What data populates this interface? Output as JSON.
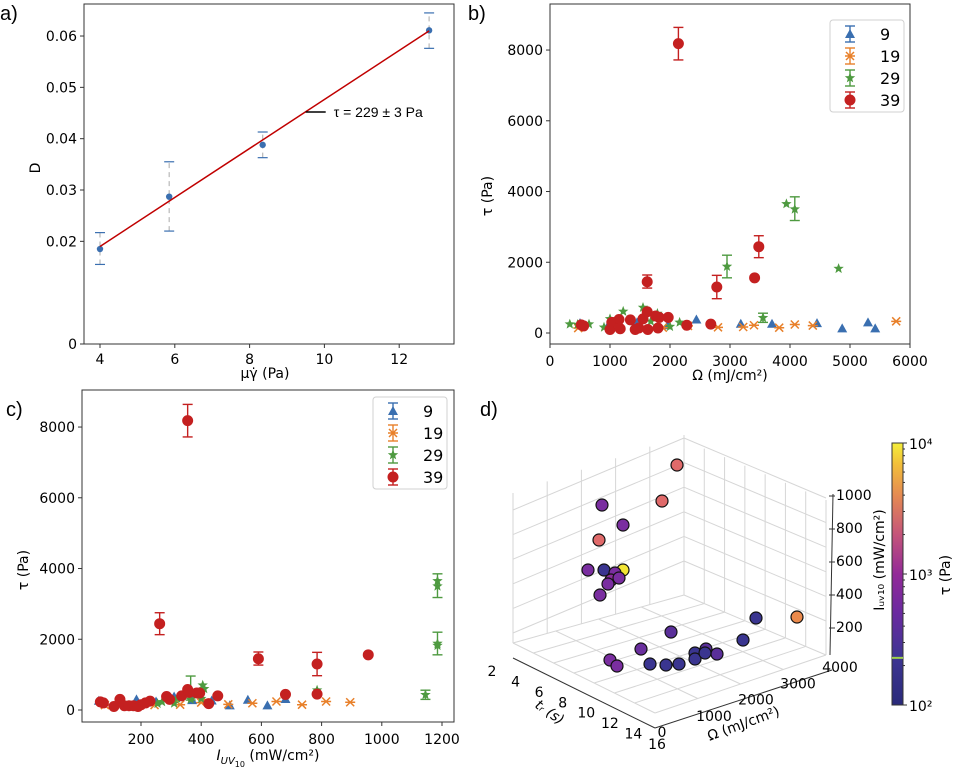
{
  "figure": {
    "panel_labels": [
      "a)",
      "b)",
      "c)",
      "d)"
    ]
  },
  "chart_data": [
    {
      "panel": "a",
      "type": "scatter",
      "title": "",
      "xlabel": "μγ̇ (Pa)",
      "ylabel": "D",
      "xlim": [
        3.8,
        13.5
      ],
      "ylim": [
        0,
        0.065
      ],
      "xticks": [
        4,
        6,
        8,
        10,
        12
      ],
      "yticks": [
        0,
        0.02,
        0.03,
        0.04,
        0.05,
        0.06
      ],
      "ytick_labels": [
        "0",
        "0.02",
        "0.03",
        "0.04",
        "0.05",
        "0.06"
      ],
      "grid": false,
      "points": [
        {
          "x": 4.0,
          "y": 0.0185,
          "err_low": 0.0155,
          "err_high": 0.0217
        },
        {
          "x": 5.85,
          "y": 0.0287,
          "err_low": 0.022,
          "err_high": 0.0355
        },
        {
          "x": 8.35,
          "y": 0.0388,
          "err_low": 0.0363,
          "err_high": 0.0413
        },
        {
          "x": 12.8,
          "y": 0.0611,
          "err_low": 0.0576,
          "err_high": 0.0645
        }
      ],
      "fit_line": {
        "x": [
          4.0,
          12.8
        ],
        "y": [
          0.019,
          0.061
        ],
        "color": "#c00000"
      },
      "annotation": {
        "text": "τ = 229 ± 3 Pa",
        "x": 9.5,
        "y": 0.0452
      },
      "marker_color": "#3a6fb0"
    },
    {
      "panel": "b",
      "type": "scatter",
      "xlabel": "Ω (mJ/cm²)",
      "ylabel": "τ (Pa)",
      "xlim": [
        0,
        6000
      ],
      "ylim": [
        -300,
        9300
      ],
      "xticks": [
        0,
        1000,
        2000,
        3000,
        4000,
        5000,
        6000
      ],
      "yticks": [
        0,
        2000,
        4000,
        6000,
        8000
      ],
      "grid": false,
      "legend": {
        "placement": "top-right",
        "entries": [
          "9",
          "19",
          "29",
          "39"
        ]
      },
      "series": [
        {
          "name": "9",
          "color": "#3a6fb0",
          "marker": "triangle",
          "points": [
            [
              500,
              280
            ],
            [
              980,
              250
            ],
            [
              1450,
              300
            ],
            [
              1960,
              220
            ],
            [
              2440,
              380
            ],
            [
              3180,
              260
            ],
            [
              3700,
              260
            ],
            [
              4450,
              280
            ],
            [
              4870,
              130
            ],
            [
              5300,
              300
            ],
            [
              5420,
              130
            ]
          ]
        },
        {
          "name": "19",
          "color": "#e8802a",
          "marker": "x",
          "points": [
            [
              470,
              140
            ],
            [
              1880,
              150
            ],
            [
              2300,
              200
            ],
            [
              2800,
              160
            ],
            [
              3220,
              170
            ],
            [
              3400,
              220
            ],
            [
              3820,
              150
            ],
            [
              4080,
              240
            ],
            [
              4380,
              210
            ],
            [
              5770,
              330
            ]
          ]
        },
        {
          "name": "29",
          "color": "#4e9a40",
          "marker": "star",
          "points": [
            [
              330,
              250
            ],
            [
              460,
              240
            ],
            [
              650,
              250
            ],
            [
              900,
              160
            ],
            [
              1000,
              400
            ],
            [
              1150,
              150
            ],
            [
              1220,
              610
            ],
            [
              1550,
              720
            ],
            [
              1680,
              330
            ],
            [
              1790,
              550
            ],
            [
              2000,
              180
            ],
            [
              2160,
              300
            ],
            [
              2950,
              1880,
              2200,
              1560
            ],
            [
              3550,
              430,
              560,
              300
            ],
            [
              3940,
              3650
            ],
            [
              4080,
              3500,
              3850,
              3180
            ],
            [
              4810,
              1820
            ]
          ]
        },
        {
          "name": "39",
          "color": "#c42020",
          "marker": "circle",
          "points": [
            [
              520,
              230
            ],
            [
              560,
              200
            ],
            [
              1000,
              100
            ],
            [
              1030,
              300
            ],
            [
              1150,
              380
            ],
            [
              1170,
              120
            ],
            [
              1340,
              370
            ],
            [
              1420,
              100
            ],
            [
              1480,
              140
            ],
            [
              1550,
              400
            ],
            [
              1620,
              600
            ],
            [
              1630,
              100
            ],
            [
              1760,
              480
            ],
            [
              1800,
              140
            ],
            [
              1820,
              440
            ],
            [
              1970,
              440
            ],
            [
              2280,
              220
            ],
            [
              2680,
              250
            ],
            [
              2140,
              8180,
              8640,
              7720
            ],
            [
              1620,
              1450,
              1640,
              1270
            ],
            [
              2780,
              1300,
              1630,
              970
            ],
            [
              3480,
              2440,
              2750,
              2130
            ],
            [
              3410,
              1560
            ]
          ]
        }
      ]
    },
    {
      "panel": "c",
      "type": "scatter",
      "xlabel": "I_UV10 (mW/cm²)",
      "ylabel": "τ (Pa)",
      "xlim": [
        30,
        1230
      ],
      "ylim": [
        -300,
        9300
      ],
      "xticks": [
        200,
        400,
        600,
        800,
        1000,
        1200
      ],
      "yticks": [
        0,
        2000,
        4000,
        6000,
        8000
      ],
      "grid": false,
      "legend": {
        "placement": "top-right",
        "entries": [
          "9",
          "19",
          "29",
          "39"
        ]
      },
      "series": [
        {
          "name": "9",
          "color": "#3a6fb0",
          "marker": "triangle",
          "points": [
            [
              60,
              260
            ],
            [
              135,
              270
            ],
            [
              185,
              300
            ],
            [
              250,
              240
            ],
            [
              310,
              380
            ],
            [
              370,
              280
            ],
            [
              435,
              270
            ],
            [
              495,
              130
            ],
            [
              555,
              290
            ],
            [
              620,
              130
            ],
            [
              680,
              310
            ]
          ]
        },
        {
          "name": "19",
          "color": "#e8802a",
          "marker": "x",
          "points": [
            [
              80,
              140
            ],
            [
              245,
              140
            ],
            [
              330,
              150
            ],
            [
              400,
              210
            ],
            [
              490,
              160
            ],
            [
              570,
              190
            ],
            [
              650,
              240
            ],
            [
              735,
              150
            ],
            [
              815,
              240
            ],
            [
              895,
              220
            ]
          ]
        },
        {
          "name": "29",
          "color": "#4e9a40",
          "marker": "star",
          "points": [
            [
              255,
              180
            ],
            [
              270,
              230
            ],
            [
              310,
              190
            ],
            [
              320,
              330
            ],
            [
              365,
              300,
              960,
              280
            ],
            [
              400,
              320
            ],
            [
              405,
              700
            ],
            [
              410,
              600
            ],
            [
              785,
              560
            ],
            [
              1145,
              430,
              560,
              300
            ],
            [
              1185,
              3650
            ],
            [
              1185,
              3500,
              3850,
              3180
            ],
            [
              1185,
              1880,
              2200,
              1560
            ],
            [
              1185,
              1820
            ]
          ]
        },
        {
          "name": "39",
          "color": "#c42020",
          "marker": "circle",
          "points": [
            [
              65,
              230
            ],
            [
              75,
              200
            ],
            [
              110,
              100
            ],
            [
              130,
              300
            ],
            [
              145,
              120
            ],
            [
              160,
              120
            ],
            [
              175,
              120
            ],
            [
              190,
              100
            ],
            [
              200,
              150
            ],
            [
              215,
              200
            ],
            [
              230,
              250
            ],
            [
              285,
              380
            ],
            [
              295,
              300
            ],
            [
              335,
              400
            ],
            [
              355,
              580
            ],
            [
              360,
              500
            ],
            [
              385,
              480
            ],
            [
              395,
              480
            ],
            [
              425,
              180
            ],
            [
              455,
              400
            ],
            [
              680,
              440
            ],
            [
              785,
              450
            ],
            [
              355,
              8180,
              8640,
              7720
            ],
            [
              262,
              2440,
              2750,
              2130
            ],
            [
              590,
              1450,
              1640,
              1270
            ],
            [
              785,
              1300,
              1630,
              970
            ],
            [
              955,
              1560
            ]
          ]
        }
      ]
    },
    {
      "panel": "d",
      "type": "scatter",
      "projection": "3d",
      "xlabel": "t_r (s)",
      "ylabel": "Ω (mJ/cm²)",
      "zlabel": "I_UV10 (mW/cm²)",
      "xticks": [
        2,
        4,
        6,
        8,
        10,
        12,
        14,
        16
      ],
      "yticks": [
        0,
        1000,
        2000,
        3000,
        4000
      ],
      "zticks": [
        200,
        400,
        600,
        800,
        1000
      ],
      "grid": true,
      "colorbar": {
        "label": "τ (Pa)",
        "scale": "log",
        "range": [
          100,
          10000
        ],
        "ticks": [
          "10²",
          "10³",
          "10⁴"
        ],
        "colormap": "plasma",
        "highlight_value": 229
      },
      "points": [
        {
          "screen_hint": "upper-left cluster",
          "color": "#e06a6a"
        },
        {
          "color": "#e06a6a"
        },
        {
          "color": "#7a2ea0"
        },
        {
          "color": "#7a2ea0"
        },
        {
          "color": "#e06a6a"
        },
        {
          "color": "#7a2ea0"
        },
        {
          "color": "#3a3590"
        },
        {
          "color": "#f2e434"
        },
        {
          "color": "#7a2ea0"
        },
        {
          "color": "#8a2e9a"
        },
        {
          "color": "#7a2ea0"
        },
        {
          "color": "#7a2ea0"
        },
        {
          "color": "#7a2ea0"
        },
        {
          "color": "#5a2f99"
        },
        {
          "color": "#eb8a4c"
        },
        {
          "color": "#3a3590"
        },
        {
          "color": "#3a3590"
        },
        {
          "color": "#5a2f99"
        },
        {
          "color": "#3a3590"
        },
        {
          "color": "#3a3590"
        },
        {
          "color": "#3a3590"
        },
        {
          "color": "#3a3590"
        },
        {
          "color": "#5a2f99"
        },
        {
          "color": "#6a2f9e"
        },
        {
          "color": "#7a2ea0"
        },
        {
          "color": "#7a2ea0"
        },
        {
          "color": "#3a3590"
        },
        {
          "color": "#3a3590"
        }
      ]
    }
  ]
}
